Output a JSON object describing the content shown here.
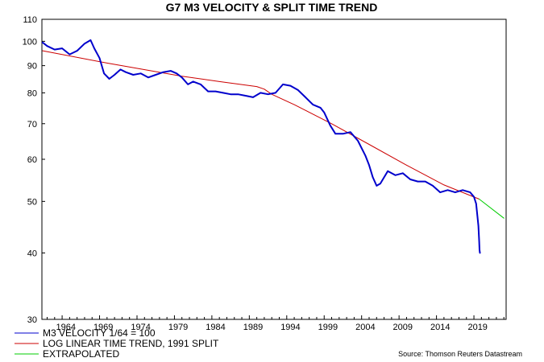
{
  "chart_data": {
    "type": "line",
    "title": "G7 M3 VELOCITY & SPLIT TIME TREND",
    "y_scale": "log",
    "ylim": [
      30,
      110
    ],
    "xlim": [
      1961.3,
      2023.3
    ],
    "y_ticks": [
      30,
      40,
      50,
      60,
      70,
      80,
      90,
      100,
      110
    ],
    "x_ticks": [
      "1964",
      "1969",
      "1974",
      "1979",
      "1984",
      "1989",
      "1994",
      "1999",
      "2004",
      "2009",
      "2014",
      "2019"
    ],
    "grid": false,
    "legend_position": "bottom-left",
    "source": "Source: Thomson Reuters Datastream",
    "colors": {
      "velocity": "#0000cc",
      "trend": "#cc0000",
      "extrapolated": "#00cc00",
      "frame": "#000000"
    },
    "series": [
      {
        "name": "M3 VELOCITY 1/64 = 100",
        "color": "#0000cc",
        "x": [
          1961.4,
          1962.0,
          1963.0,
          1964.0,
          1965.0,
          1966.0,
          1967.0,
          1967.8,
          1968.3,
          1969.0,
          1969.6,
          1970.3,
          1971.0,
          1971.8,
          1972.5,
          1973.5,
          1974.5,
          1975.5,
          1976.5,
          1977.5,
          1978.5,
          1979.3,
          1980.0,
          1980.8,
          1981.5,
          1982.5,
          1983.5,
          1984.5,
          1985.5,
          1986.5,
          1987.5,
          1988.5,
          1989.5,
          1990.5,
          1991.5,
          1992.5,
          1993.5,
          1994.5,
          1995.5,
          1996.5,
          1997.5,
          1998.5,
          1999.0,
          1999.8,
          2000.5,
          2001.5,
          2002.5,
          2003.5,
          2004.5,
          2005.0,
          2005.5,
          2006.0,
          2006.5,
          2007.0,
          2007.5,
          2008.0,
          2008.5,
          2009.5,
          2010.5,
          2011.5,
          2012.5,
          2013.5,
          2014.5,
          2015.5,
          2016.5,
          2017.5,
          2018.5,
          2019.0,
          2019.3,
          2019.6,
          2019.7,
          2019.75,
          2019.8
        ],
        "values": [
          99.5,
          98.0,
          96.5,
          97.0,
          94.5,
          96.0,
          99.0,
          100.5,
          97.0,
          93.0,
          87.0,
          85.0,
          86.5,
          88.5,
          87.5,
          86.5,
          87.0,
          85.5,
          86.5,
          87.5,
          88.0,
          87.0,
          85.5,
          83.0,
          84.0,
          83.0,
          80.5,
          80.5,
          80.0,
          79.5,
          79.5,
          79.0,
          78.5,
          80.0,
          79.5,
          80.0,
          83.0,
          82.5,
          81.0,
          78.5,
          76.0,
          75.0,
          73.5,
          69.5,
          67.0,
          67.0,
          67.5,
          65.0,
          61.0,
          58.5,
          55.5,
          53.5,
          54.0,
          55.5,
          57.0,
          56.5,
          56.0,
          56.5,
          55.0,
          54.5,
          54.5,
          53.5,
          52.0,
          52.5,
          52.0,
          52.5,
          52.0,
          51.0,
          49.5,
          45.0,
          42.0,
          40.5,
          40.0
        ]
      },
      {
        "name": "LOG LINEAR TIME TREND, 1991 SPLIT",
        "color": "#cc0000",
        "x": [
          1961.4,
          1970.0,
          1980.0,
          1985.0,
          1990.0,
          1991.0,
          1992.0,
          1995.0,
          2000.0,
          2005.0,
          2010.0,
          2015.0,
          2019.7
        ],
        "values": [
          96.0,
          91.0,
          86.0,
          84.0,
          82.2,
          81.3,
          79.5,
          76.0,
          70.0,
          64.0,
          58.5,
          53.7,
          50.5
        ]
      },
      {
        "name": "EXTRAPOLATED",
        "color": "#00cc00",
        "x": [
          2019.7,
          2023.0
        ],
        "values": [
          50.5,
          46.5
        ]
      }
    ]
  }
}
